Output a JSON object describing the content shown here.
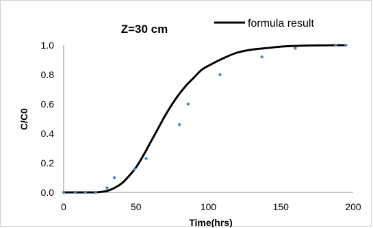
{
  "chart_data": {
    "type": "scatter",
    "title": "Z=30 cm",
    "xlabel": "Time(hrs)",
    "ylabel": "C/C0",
    "xlim": [
      0,
      200
    ],
    "ylim": [
      0,
      1.0
    ],
    "x_ticks": [
      "0",
      "50",
      "100",
      "150",
      "200"
    ],
    "y_ticks": [
      "0.0",
      "0.2",
      "0.4",
      "0.6",
      "0.8",
      "1.0"
    ],
    "grid": false,
    "legend_position": "top-right",
    "series": [
      {
        "name": "formula result",
        "type": "line",
        "color": "#000000",
        "x": [
          0,
          10,
          20,
          25,
          30,
          35,
          40,
          45,
          50,
          55,
          60,
          65,
          70,
          75,
          80,
          85,
          90,
          95,
          100,
          110,
          120,
          130,
          140,
          150,
          160,
          170,
          180,
          190,
          195
        ],
        "y": [
          0.0,
          0.0,
          0.0,
          0.002,
          0.01,
          0.03,
          0.06,
          0.11,
          0.17,
          0.25,
          0.34,
          0.43,
          0.52,
          0.6,
          0.67,
          0.73,
          0.78,
          0.83,
          0.86,
          0.91,
          0.95,
          0.97,
          0.98,
          0.99,
          0.995,
          0.998,
          0.999,
          1.0,
          1.0
        ]
      },
      {
        "type": "scatter",
        "color": "#4a86c8",
        "x": [
          0,
          8,
          15,
          22,
          30,
          35,
          49,
          57,
          80,
          86,
          108,
          137,
          160,
          188,
          195
        ],
        "y": [
          0.0,
          0.0,
          0.0,
          0.0,
          0.03,
          0.1,
          0.16,
          0.23,
          0.46,
          0.6,
          0.8,
          0.92,
          0.98,
          1.0,
          1.0
        ]
      }
    ]
  }
}
